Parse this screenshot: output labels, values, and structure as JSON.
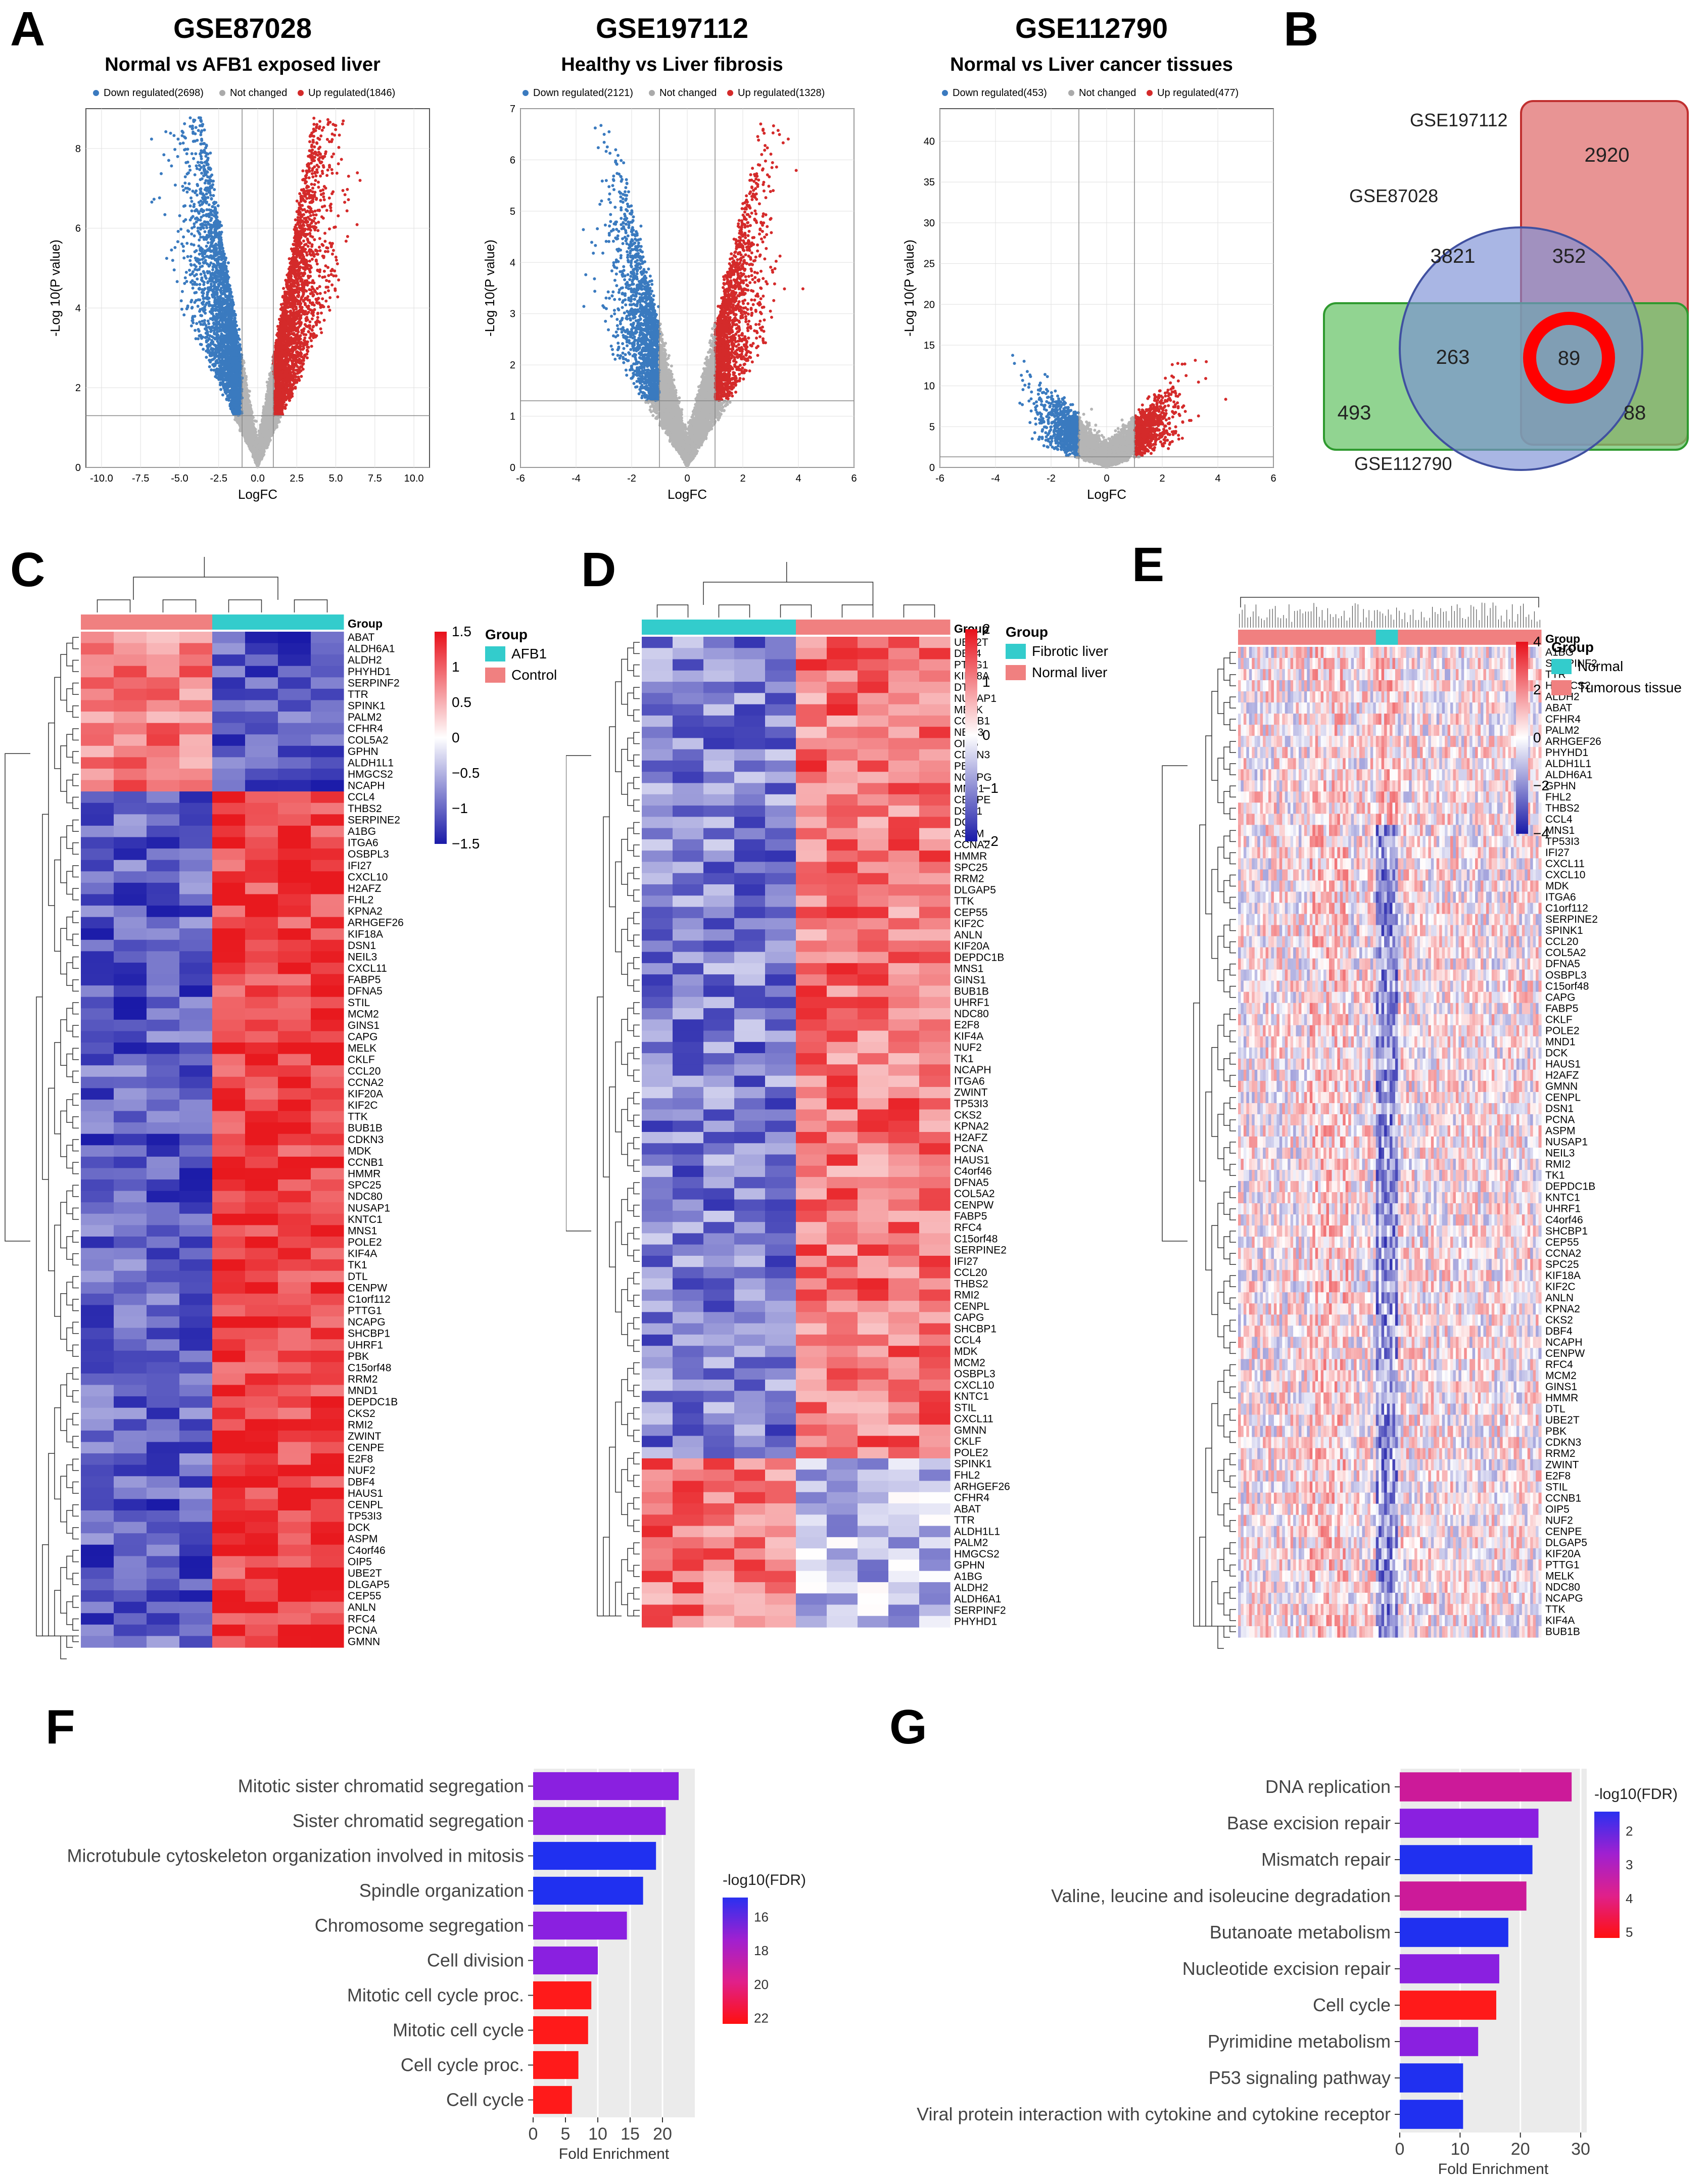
{
  "panels": {
    "A": "A",
    "B": "B",
    "C": "C",
    "D": "D",
    "E": "E",
    "F": "F",
    "G": "G"
  },
  "volcano": [
    {
      "title": "GSE87028",
      "subtitle": "Normal vs AFB1 exposed liver",
      "legend": {
        "down": "Down regulated(2698)",
        "nc": "Not changed",
        "up": "Up regulated(1846)"
      },
      "xlabel": "LogFC",
      "ylabel": "-Log 10(P value)",
      "xticks": [
        "-10.0",
        "-7.5",
        "-5.0",
        "-2.5",
        "0.0",
        "2.5",
        "5.0",
        "7.5",
        "10.0"
      ],
      "yticks": [
        "0",
        "2",
        "4",
        "6",
        "8"
      ]
    },
    {
      "title": "GSE197112",
      "subtitle": "Healthy vs Liver fibrosis",
      "legend": {
        "down": "Down regulated(2121)",
        "nc": "Not changed",
        "up": "Up regulated(1328)"
      },
      "xlabel": "LogFC",
      "ylabel": "-Log 10(P value)",
      "xticks": [
        "-6",
        "-4",
        "-2",
        "0",
        "2",
        "4",
        "6"
      ],
      "yticks": [
        "0",
        "1",
        "2",
        "3",
        "4",
        "5",
        "6",
        "7"
      ]
    },
    {
      "title": "GSE112790",
      "subtitle": "Normal vs Liver cancer tissues",
      "legend": {
        "down": "Down regulated(453)",
        "nc": "Not changed",
        "up": "Up regulated(477)"
      },
      "xlabel": "LogFC",
      "ylabel": "-Log 10(P value)",
      "xticks": [
        "-6",
        "-4",
        "-2",
        "0",
        "2",
        "4",
        "6"
      ],
      "yticks": [
        "0",
        "5",
        "10",
        "15",
        "20",
        "25",
        "30",
        "35",
        "40"
      ]
    }
  ],
  "venn": {
    "labels": {
      "a": "GSE197112",
      "b": "GSE87028",
      "c": "GSE112790"
    },
    "counts": {
      "only197112": "2920",
      "only87028": "3821",
      "ab": "352",
      "bc": "263",
      "abc": "89",
      "only112790": "493",
      "ac": "88"
    },
    "colors": {
      "a": "#e07070",
      "b": "#7b8fd6",
      "c": "#6cc66c",
      "highlight": "#ff0000"
    }
  },
  "heatC": {
    "group_title": "Group",
    "legend": [
      {
        "label": "AFB1",
        "color": "#33cccc"
      },
      {
        "label": "Control",
        "color": "#f08080"
      }
    ],
    "scale": [
      "1.5",
      "1",
      "0.5",
      "0",
      "−0.5",
      "−1",
      "−1.5"
    ],
    "genes": [
      "ABAT",
      "ALDH6A1",
      "ALDH2",
      "PHYHD1",
      "SERPINF2",
      "TTR",
      "SPINK1",
      "PALM2",
      "CFHR4",
      "COL5A2",
      "GPHN",
      "ALDH1L1",
      "HMGCS2",
      "NCAPH",
      "CCL4",
      "THBS2",
      "SERPINE2",
      "A1BG",
      "ITGA6",
      "OSBPL3",
      "IFI27",
      "CXCL10",
      "H2AFZ",
      "FHL2",
      "KPNA2",
      "ARHGEF26",
      "KIF18A",
      "DSN1",
      "NEIL3",
      "CXCL11",
      "FABP5",
      "DFNA5",
      "STIL",
      "MCM2",
      "GINS1",
      "CAPG",
      "MELK",
      "CKLF",
      "CCL20",
      "CCNA2",
      "KIF20A",
      "KIF2C",
      "TTK",
      "BUB1B",
      "CDKN3",
      "MDK",
      "CCNB1",
      "HMMR",
      "SPC25",
      "NDC80",
      "NUSAP1",
      "KNTC1",
      "MNS1",
      "POLE2",
      "KIF4A",
      "TK1",
      "DTL",
      "CENPW",
      "C1orf112",
      "PTTG1",
      "NCAPG",
      "SHCBP1",
      "UHRF1",
      "PBK",
      "C15orf48",
      "RRM2",
      "MND1",
      "DEPDC1B",
      "CKS2",
      "RMI2",
      "ZWINT",
      "CENPE",
      "E2F8",
      "NUF2",
      "DBF4",
      "HAUS1",
      "CENPL",
      "TP53I3",
      "DCK",
      "ASPM",
      "C4orf46",
      "OIP5",
      "UBE2T",
      "DLGAP5",
      "CEP55",
      "ANLN",
      "RFC4",
      "PCNA",
      "GMNN"
    ]
  },
  "heatD": {
    "group_title": "Group",
    "legend": [
      {
        "label": "Fibrotic liver",
        "color": "#33cccc"
      },
      {
        "label": "Normal liver",
        "color": "#f08080"
      }
    ],
    "scale": [
      "2",
      "1",
      "0",
      "−1",
      "−2"
    ],
    "genes": [
      "UBE2T",
      "DBF4",
      "PTTG1",
      "KIF18A",
      "DTL",
      "NUSAP1",
      "MELK",
      "CCNB1",
      "NEIL3",
      "OIP5",
      "CDKN3",
      "PBK",
      "NCAPG",
      "MND1",
      "CENPE",
      "DSN1",
      "DCK",
      "ASPM",
      "CCNA2",
      "HMMR",
      "SPC25",
      "RRM2",
      "DLGAP5",
      "TTK",
      "CEP55",
      "KIF2C",
      "ANLN",
      "KIF20A",
      "DEPDC1B",
      "MNS1",
      "GINS1",
      "BUB1B",
      "UHRF1",
      "NDC80",
      "E2F8",
      "KIF4A",
      "NUF2",
      "TK1",
      "NCAPH",
      "ITGA6",
      "ZWINT",
      "TP53I3",
      "CKS2",
      "KPNA2",
      "H2AFZ",
      "PCNA",
      "HAUS1",
      "C4orf46",
      "DFNA5",
      "COL5A2",
      "CENPW",
      "FABP5",
      "RFC4",
      "C15orf48",
      "SERPINE2",
      "IFI27",
      "CCL20",
      "THBS2",
      "RMI2",
      "CENPL",
      "CAPG",
      "SHCBP1",
      "CCL4",
      "MDK",
      "MCM2",
      "OSBPL3",
      "CXCL10",
      "KNTC1",
      "STIL",
      "CXCL11",
      "GMNN",
      "CKLF",
      "POLE2",
      "SPINK1",
      "FHL2",
      "ARHGEF26",
      "CFHR4",
      "ABAT",
      "TTR",
      "ALDH1L1",
      "PALM2",
      "HMGCS2",
      "GPHN",
      "A1BG",
      "ALDH2",
      "ALDH6A1",
      "SERPINF2",
      "PHYHD1"
    ]
  },
  "heatE": {
    "group_title": "Group",
    "legend": [
      {
        "label": "Normal",
        "color": "#33cccc"
      },
      {
        "label": "Tumorous tissue",
        "color": "#f08080"
      }
    ],
    "scale": [
      "4",
      "2",
      "0",
      "−2",
      "−4"
    ],
    "genes": [
      "A1BG",
      "SERPINF2",
      "TTR",
      "HMGCS2",
      "ALDH2",
      "ABAT",
      "CFHR4",
      "PALM2",
      "ARHGEF26",
      "PHYHD1",
      "ALDH1L1",
      "ALDH6A1",
      "GPHN",
      "FHL2",
      "THBS2",
      "CCL4",
      "MNS1",
      "TP53I3",
      "IFI27",
      "CXCL11",
      "CXCL10",
      "MDK",
      "ITGA6",
      "C1orf112",
      "SERPINE2",
      "SPINK1",
      "CCL20",
      "COL5A2",
      "DFNA5",
      "OSBPL3",
      "C15orf48",
      "CAPG",
      "FABP5",
      "CKLF",
      "POLE2",
      "MND1",
      "DCK",
      "HAUS1",
      "H2AFZ",
      "GMNN",
      "CENPL",
      "DSN1",
      "PCNA",
      "ASPM",
      "NUSAP1",
      "NEIL3",
      "RMI2",
      "TK1",
      "DEPDC1B",
      "KNTC1",
      "UHRF1",
      "C4orf46",
      "SHCBP1",
      "CEP55",
      "CCNA2",
      "SPC25",
      "KIF18A",
      "KIF2C",
      "ANLN",
      "KPNA2",
      "CKS2",
      "DBF4",
      "NCAPH",
      "CENPW",
      "RFC4",
      "MCM2",
      "GINS1",
      "HMMR",
      "DTL",
      "UBE2T",
      "PBK",
      "CDKN3",
      "RRM2",
      "ZWINT",
      "E2F8",
      "STIL",
      "CCNB1",
      "OIP5",
      "NUF2",
      "CENPE",
      "DLGAP5",
      "KIF20A",
      "PTTG1",
      "MELK",
      "NDC80",
      "NCAPG",
      "TTK",
      "KIF4A",
      "BUB1B"
    ]
  },
  "barF": {
    "chart_data": {
      "type": "bar",
      "categories": [
        "Mitotic sister chromatid segregation",
        "Sister chromatid segregation",
        "Microtubule cytoskeleton organization involved in mitosis",
        "Spindle organization",
        "Chromosome segregation",
        "Cell division",
        "Mitotic cell cycle proc.",
        "Mitotic cell cycle",
        "Cell cycle proc.",
        "Cell cycle"
      ],
      "values": [
        22.5,
        20.5,
        19.0,
        17.0,
        14.5,
        10.0,
        9.0,
        8.5,
        7.0,
        6.0
      ],
      "colors": [
        "#8a20e0",
        "#8a20e0",
        "#2030f0",
        "#2030f0",
        "#8a20e0",
        "#8a20e0",
        "#ff1a1a",
        "#ff1a1a",
        "#ff1a1a",
        "#ff1a1a"
      ],
      "xlabel": "Fold Enrichment",
      "xticks": [
        "0",
        "5",
        "10",
        "15",
        "20"
      ],
      "xlim": [
        0,
        25
      ],
      "legend_title": "-log10(FDR)",
      "legend_ticks": [
        "16",
        "18",
        "20",
        "22"
      ]
    }
  },
  "barG": {
    "chart_data": {
      "type": "bar",
      "categories": [
        "DNA replication",
        "Base excision repair",
        "Mismatch repair",
        "Valine, leucine and isoleucine degradation",
        "Butanoate metabolism",
        "Nucleotide excision repair",
        "Cell cycle",
        "Pyrimidine metabolism",
        "P53 signaling pathway",
        "Viral protein interaction with cytokine and cytokine receptor"
      ],
      "values": [
        28.5,
        23.0,
        22.0,
        21.0,
        18.0,
        16.5,
        16.0,
        13.0,
        10.5,
        10.5
      ],
      "colors": [
        "#cc1a99",
        "#8a20e0",
        "#2030f0",
        "#cc1a99",
        "#2030f0",
        "#8a20e0",
        "#ff1a1a",
        "#8a20e0",
        "#2030f0",
        "#2030f0"
      ],
      "xlabel": "Fold Enrichment",
      "xticks": [
        "0",
        "10",
        "20",
        "30"
      ],
      "xlim": [
        0,
        31
      ],
      "legend_title": "-log10(FDR)",
      "legend_ticks": [
        "2",
        "3",
        "4",
        "5"
      ]
    }
  }
}
